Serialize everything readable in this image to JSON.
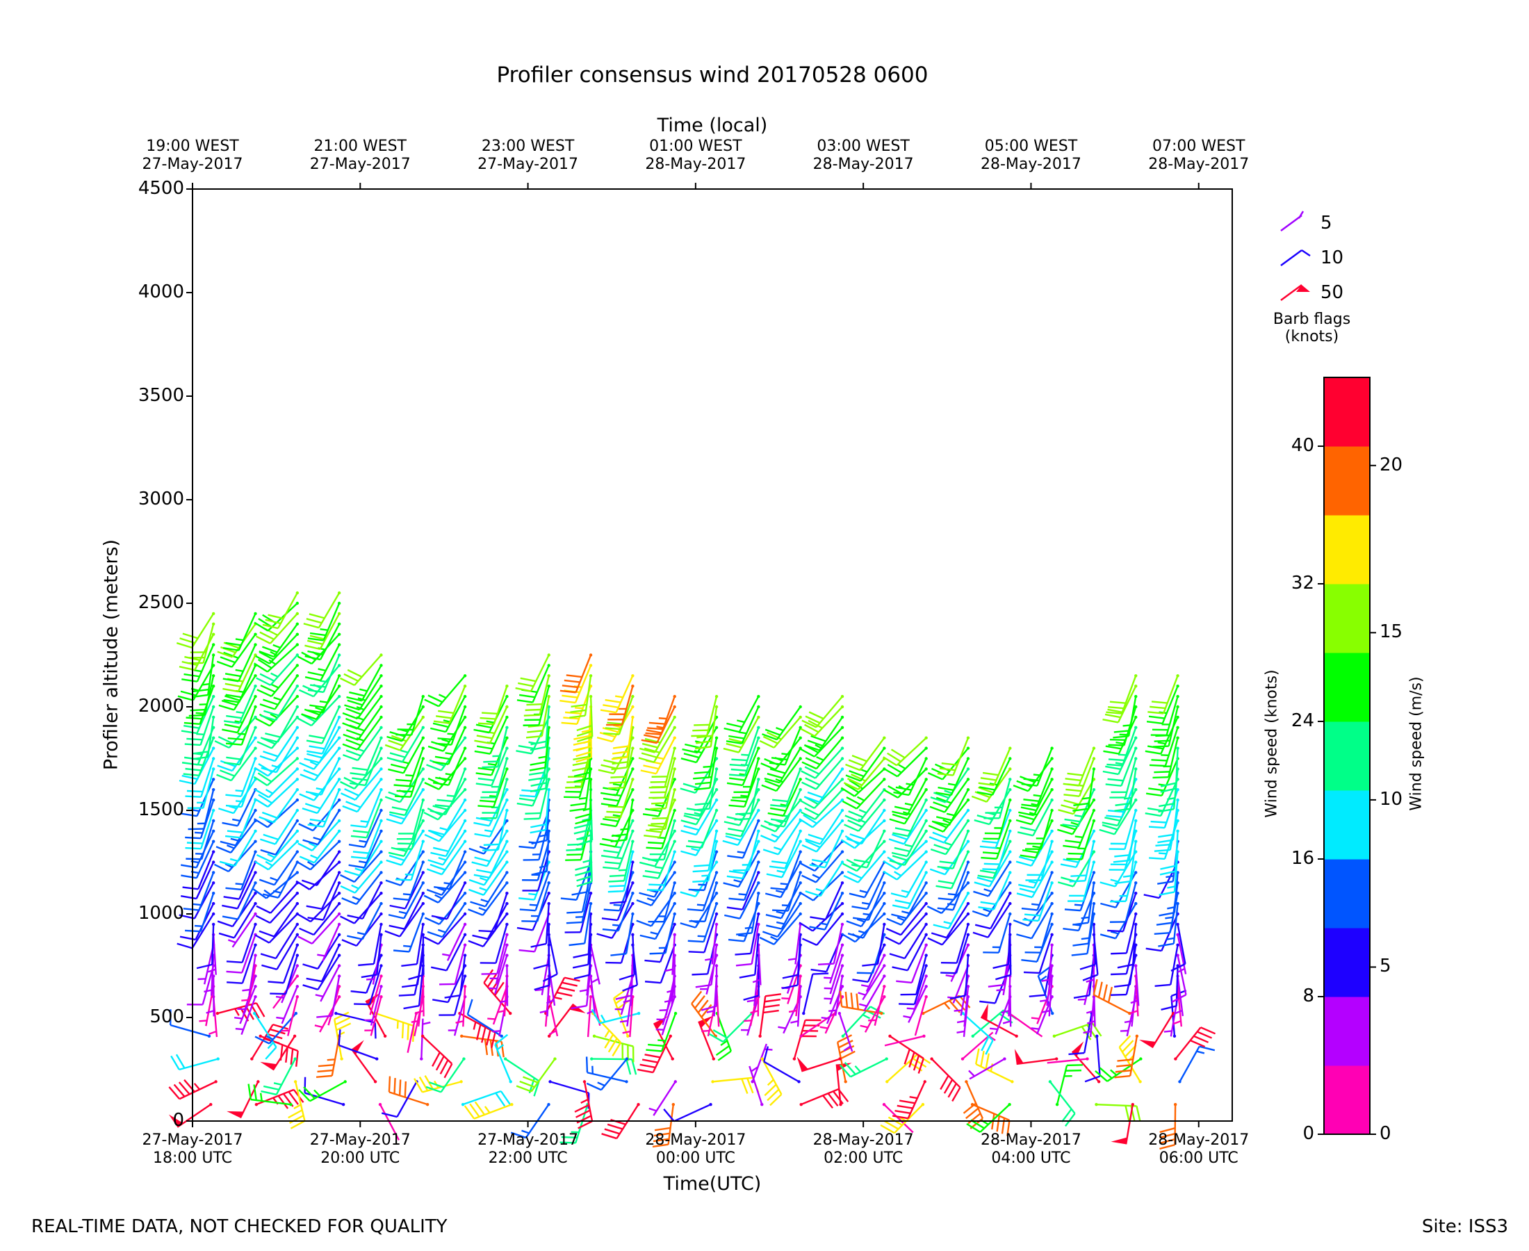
{
  "chart_data": {
    "type": "wind-barb time-height plot",
    "title": "Profiler consensus wind 20170528 0600",
    "xlabel": "Time(UTC)",
    "top_xlabel": "Time (local)",
    "ylabel": "Profiler altitude (meters)",
    "ylim": [
      0,
      4500
    ],
    "xlim_hours_utc": [
      0,
      12.4
    ],
    "y_ticks": [
      "0",
      "500",
      "1000",
      "1500",
      "2000",
      "2500",
      "3000",
      "3500",
      "4000",
      "4500"
    ],
    "x_ticks_utc": [
      {
        "hour": 0,
        "date": "27-May-2017",
        "time": "18:00 UTC"
      },
      {
        "hour": 2,
        "date": "27-May-2017",
        "time": "20:00 UTC"
      },
      {
        "hour": 4,
        "date": "27-May-2017",
        "time": "22:00 UTC"
      },
      {
        "hour": 6,
        "date": "28-May-2017",
        "time": "00:00 UTC"
      },
      {
        "hour": 8,
        "date": "28-May-2017",
        "time": "02:00 UTC"
      },
      {
        "hour": 10,
        "date": "28-May-2017",
        "time": "04:00 UTC"
      },
      {
        "hour": 12,
        "date": "28-May-2017",
        "time": "06:00 UTC"
      }
    ],
    "x_ticks_local": [
      {
        "hour": 0,
        "time": "19:00 WEST",
        "date": "27-May-2017"
      },
      {
        "hour": 2,
        "time": "21:00 WEST",
        "date": "27-May-2017"
      },
      {
        "hour": 4,
        "time": "23:00 WEST",
        "date": "27-May-2017"
      },
      {
        "hour": 6,
        "time": "01:00 WEST",
        "date": "28-May-2017"
      },
      {
        "hour": 8,
        "time": "03:00 WEST",
        "date": "28-May-2017"
      },
      {
        "hour": 10,
        "time": "05:00 WEST",
        "date": "28-May-2017"
      },
      {
        "hour": 12,
        "time": "07:00 WEST",
        "date": "28-May-2017"
      }
    ],
    "barb_legend": {
      "items": [
        {
          "value": "5",
          "color": "#a000ff"
        },
        {
          "value": "10",
          "color": "#1a00ff"
        },
        {
          "value": "50",
          "color": "#ff0030"
        }
      ],
      "title_line1": "Barb flags",
      "title_line2": "(knots)"
    },
    "colorbar": {
      "colors": [
        "#ff00b4",
        "#b400ff",
        "#1e00ff",
        "#0055ff",
        "#00ebff",
        "#00ff88",
        "#00ff00",
        "#88ff00",
        "#ffeb00",
        "#ff6400",
        "#ff0030"
      ],
      "max_knots": 44,
      "knots_ticks": [
        0,
        8,
        16,
        24,
        32,
        40
      ],
      "knots_tick_labels": [
        "0",
        "8",
        "16",
        "24",
        "32",
        "40"
      ],
      "ms_ticks": [
        0,
        5,
        10,
        15,
        20
      ],
      "ms_tick_labels": [
        "0",
        "5",
        "10",
        "15",
        "20"
      ],
      "left_label": "Wind speed (knots)",
      "right_label": "Wind speed (m/s)"
    },
    "profiles": [
      {
        "hour": 0.25,
        "top": 2450,
        "dir": 200
      },
      {
        "hour": 0.75,
        "top": 2450,
        "dir": 210
      },
      {
        "hour": 1.25,
        "top": 2550,
        "dir": 220
      },
      {
        "hour": 1.75,
        "top": 2550,
        "dir": 215
      },
      {
        "hour": 2.25,
        "top": 2250,
        "dir": 210
      },
      {
        "hour": 2.75,
        "top": 2050,
        "dir": 205
      },
      {
        "hour": 3.25,
        "top": 2150,
        "dir": 210
      },
      {
        "hour": 3.75,
        "top": 2100,
        "dir": 205
      },
      {
        "hour": 4.25,
        "top": 2250,
        "dir": 195
      },
      {
        "hour": 4.75,
        "top": 2250,
        "dir": 190
      },
      {
        "hour": 5.25,
        "top": 2150,
        "dir": 200
      },
      {
        "hour": 5.75,
        "top": 2050,
        "dir": 205
      },
      {
        "hour": 6.25,
        "top": 2050,
        "dir": 200
      },
      {
        "hour": 6.75,
        "top": 2050,
        "dir": 200
      },
      {
        "hour": 7.25,
        "top": 2000,
        "dir": 210
      },
      {
        "hour": 7.75,
        "top": 2050,
        "dir": 215
      },
      {
        "hour": 8.25,
        "top": 1850,
        "dir": 215
      },
      {
        "hour": 8.75,
        "top": 1850,
        "dir": 215
      },
      {
        "hour": 9.25,
        "top": 1850,
        "dir": 210
      },
      {
        "hour": 9.75,
        "top": 1800,
        "dir": 205
      },
      {
        "hour": 10.25,
        "top": 1800,
        "dir": 205
      },
      {
        "hour": 10.75,
        "top": 1800,
        "dir": 200
      },
      {
        "hour": 11.25,
        "top": 2150,
        "dir": 200
      },
      {
        "hour": 11.75,
        "top": 2150,
        "dir": 195
      }
    ]
  },
  "footer": {
    "left": "REAL-TIME DATA, NOT CHECKED FOR QUALITY",
    "right": "Site: ISS3"
  }
}
